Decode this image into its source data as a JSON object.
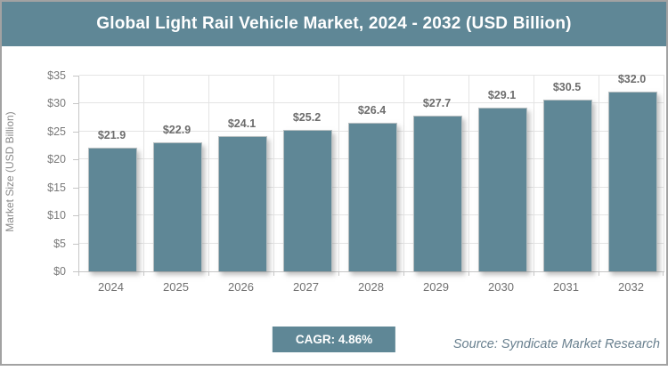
{
  "header": {
    "title": "Global Light Rail Vehicle Market, 2024 - 2032 (USD Billion)"
  },
  "chart_data": {
    "type": "bar",
    "title": "Global Light Rail Vehicle Market, 2024 - 2032 (USD Billion)",
    "categories": [
      "2024",
      "2025",
      "2026",
      "2027",
      "2028",
      "2029",
      "2030",
      "2031",
      "2032"
    ],
    "values": [
      21.9,
      22.9,
      24.1,
      25.2,
      26.4,
      27.7,
      29.1,
      30.5,
      32.0
    ],
    "value_labels": [
      "$21.9",
      "$22.9",
      "$24.1",
      "$25.2",
      "$26.4",
      "$27.7",
      "$29.1",
      "$30.5",
      "$32.0"
    ],
    "xlabel": "",
    "ylabel": "Market Size (USD Billion)",
    "ylim": [
      0,
      35
    ],
    "ytick_step": 5,
    "ytick_labels": [
      "$0",
      "$5",
      "$10",
      "$15",
      "$20",
      "$25",
      "$30",
      "$35"
    ],
    "grid": "on",
    "legend": "none"
  },
  "footer": {
    "cagr_label": "CAGR: 4.86%",
    "source": "Source: Syndicate Market Research"
  },
  "colors": {
    "accent": "#5f8796",
    "bar": "#5f8796",
    "grid": "#e4e4e4",
    "axis": "#c6c6c6",
    "tick_text": "#7a7a7a",
    "value_text": "#6d6d6d",
    "source_text": "#69808f",
    "frame_border": "#a2a2a2",
    "title_text": "#ffffff"
  }
}
